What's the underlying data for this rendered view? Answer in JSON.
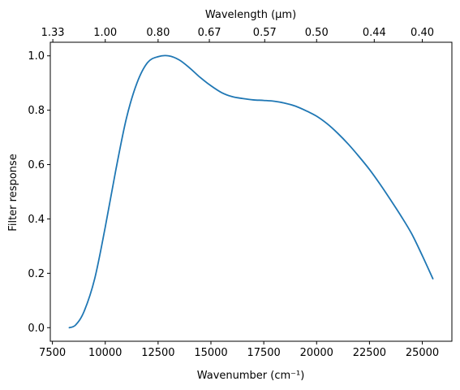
{
  "chart_data": {
    "type": "line",
    "title": "",
    "xlabel": "Wavenumber (cm⁻¹)",
    "ylabel": "Filter response",
    "top_xlabel": "Wavelength (μm)",
    "xlim": [
      7400,
      26400
    ],
    "ylim": [
      -0.05,
      1.05
    ],
    "x_ticks": [
      7500,
      10000,
      12500,
      15000,
      17500,
      20000,
      22500,
      25000
    ],
    "y_ticks": [
      0.0,
      0.2,
      0.4,
      0.6,
      0.8,
      1.0
    ],
    "top_ticks": [
      {
        "label": "1.33",
        "wavenumber": 7519
      },
      {
        "label": "1.00",
        "wavenumber": 10000
      },
      {
        "label": "0.80",
        "wavenumber": 12500
      },
      {
        "label": "0.67",
        "wavenumber": 14925
      },
      {
        "label": "0.57",
        "wavenumber": 17544
      },
      {
        "label": "0.50",
        "wavenumber": 20000
      },
      {
        "label": "0.44",
        "wavenumber": 22727
      },
      {
        "label": "0.40",
        "wavenumber": 25000
      }
    ],
    "grid": false,
    "series": [
      {
        "color": "#1f77b4",
        "x": [
          8300,
          8600,
          9000,
          9500,
          10000,
          10500,
          11000,
          11500,
          12000,
          12500,
          13000,
          13500,
          14000,
          14500,
          15000,
          15500,
          16000,
          16500,
          17000,
          17500,
          18000,
          18500,
          19000,
          19500,
          20000,
          20500,
          21000,
          21500,
          22000,
          22500,
          23000,
          23500,
          24000,
          24500,
          25000,
          25500
        ],
        "y": [
          0.0,
          0.01,
          0.06,
          0.18,
          0.37,
          0.58,
          0.77,
          0.9,
          0.975,
          0.997,
          1.0,
          0.985,
          0.955,
          0.92,
          0.89,
          0.865,
          0.85,
          0.843,
          0.838,
          0.836,
          0.833,
          0.826,
          0.815,
          0.798,
          0.778,
          0.75,
          0.715,
          0.675,
          0.63,
          0.582,
          0.528,
          0.47,
          0.41,
          0.345,
          0.265,
          0.18
        ]
      }
    ]
  }
}
